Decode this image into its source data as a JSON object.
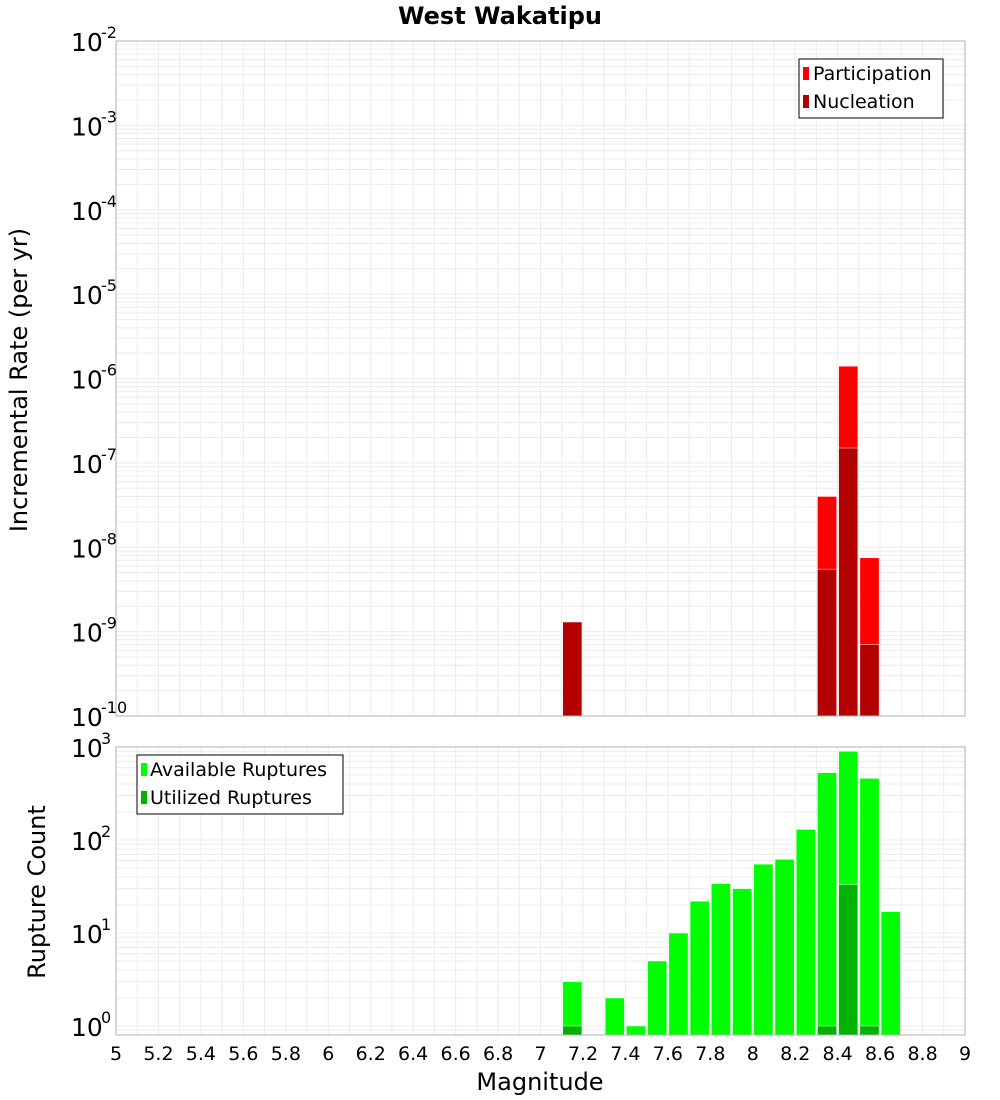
{
  "chart_data": [
    {
      "type": "bar",
      "title": "West Wakatipu",
      "xlabel": "",
      "ylabel": "Incremental Rate (per yr)",
      "xlim": [
        5,
        9
      ],
      "ylim": [
        1e-10,
        0.01
      ],
      "yscale": "log",
      "grid": true,
      "legend_position": "top-right",
      "bar_width": 0.1,
      "x": [
        7.15,
        8.35,
        8.45,
        8.55
      ],
      "series": [
        {
          "name": "Participation",
          "color": "#ff0000",
          "values": [
            1.3e-09,
            4e-08,
            1.4e-06,
            7.5e-09
          ]
        },
        {
          "name": "Nucleation",
          "color": "#b30000",
          "values": [
            1.3e-09,
            5.5e-09,
            1.5e-07,
            7e-10
          ]
        }
      ]
    },
    {
      "type": "bar",
      "title": "",
      "xlabel": "Magnitude",
      "ylabel": "Rupture Count",
      "xlim": [
        5,
        9
      ],
      "ylim": [
        0.8,
        1000
      ],
      "yscale": "log",
      "grid": true,
      "legend_position": "top-left",
      "bar_width": 0.1,
      "x": [
        7.15,
        7.35,
        7.45,
        7.55,
        7.65,
        7.75,
        7.85,
        7.95,
        8.05,
        8.15,
        8.25,
        8.35,
        8.45,
        8.55,
        8.65
      ],
      "series": [
        {
          "name": "Available Ruptures",
          "color": "#00ff00",
          "values": [
            3,
            2,
            1,
            5,
            10,
            22,
            34,
            30,
            55,
            62,
            130,
            530,
            900,
            460,
            17
          ]
        },
        {
          "name": "Utilized Ruptures",
          "color": "#00b300",
          "values": [
            1,
            0,
            0,
            0,
            0,
            0,
            0,
            0,
            0,
            0,
            0,
            1,
            33,
            1,
            0
          ]
        }
      ]
    }
  ],
  "x_ticks": [
    "5",
    "5.2",
    "5.4",
    "5.6",
    "5.8",
    "6",
    "6.2",
    "6.4",
    "6.6",
    "6.8",
    "7",
    "7.2",
    "7.4",
    "7.6",
    "7.8",
    "8",
    "8.2",
    "8.4",
    "8.6",
    "8.8",
    "9"
  ],
  "top_y_ticks": [
    {
      "base": "10",
      "exp": "-10"
    },
    {
      "base": "10",
      "exp": "-9"
    },
    {
      "base": "10",
      "exp": "-8"
    },
    {
      "base": "10",
      "exp": "-7"
    },
    {
      "base": "10",
      "exp": "-6"
    },
    {
      "base": "10",
      "exp": "-5"
    },
    {
      "base": "10",
      "exp": "-4"
    },
    {
      "base": "10",
      "exp": "-3"
    },
    {
      "base": "10",
      "exp": "-2"
    }
  ],
  "bottom_y_ticks": [
    {
      "base": "10",
      "exp": "0"
    },
    {
      "base": "10",
      "exp": "1"
    },
    {
      "base": "10",
      "exp": "2"
    },
    {
      "base": "10",
      "exp": "3"
    }
  ],
  "colors": {
    "grid": "#ececec",
    "frame": "#b0b0b0",
    "bar_edge": "#ffffff"
  }
}
